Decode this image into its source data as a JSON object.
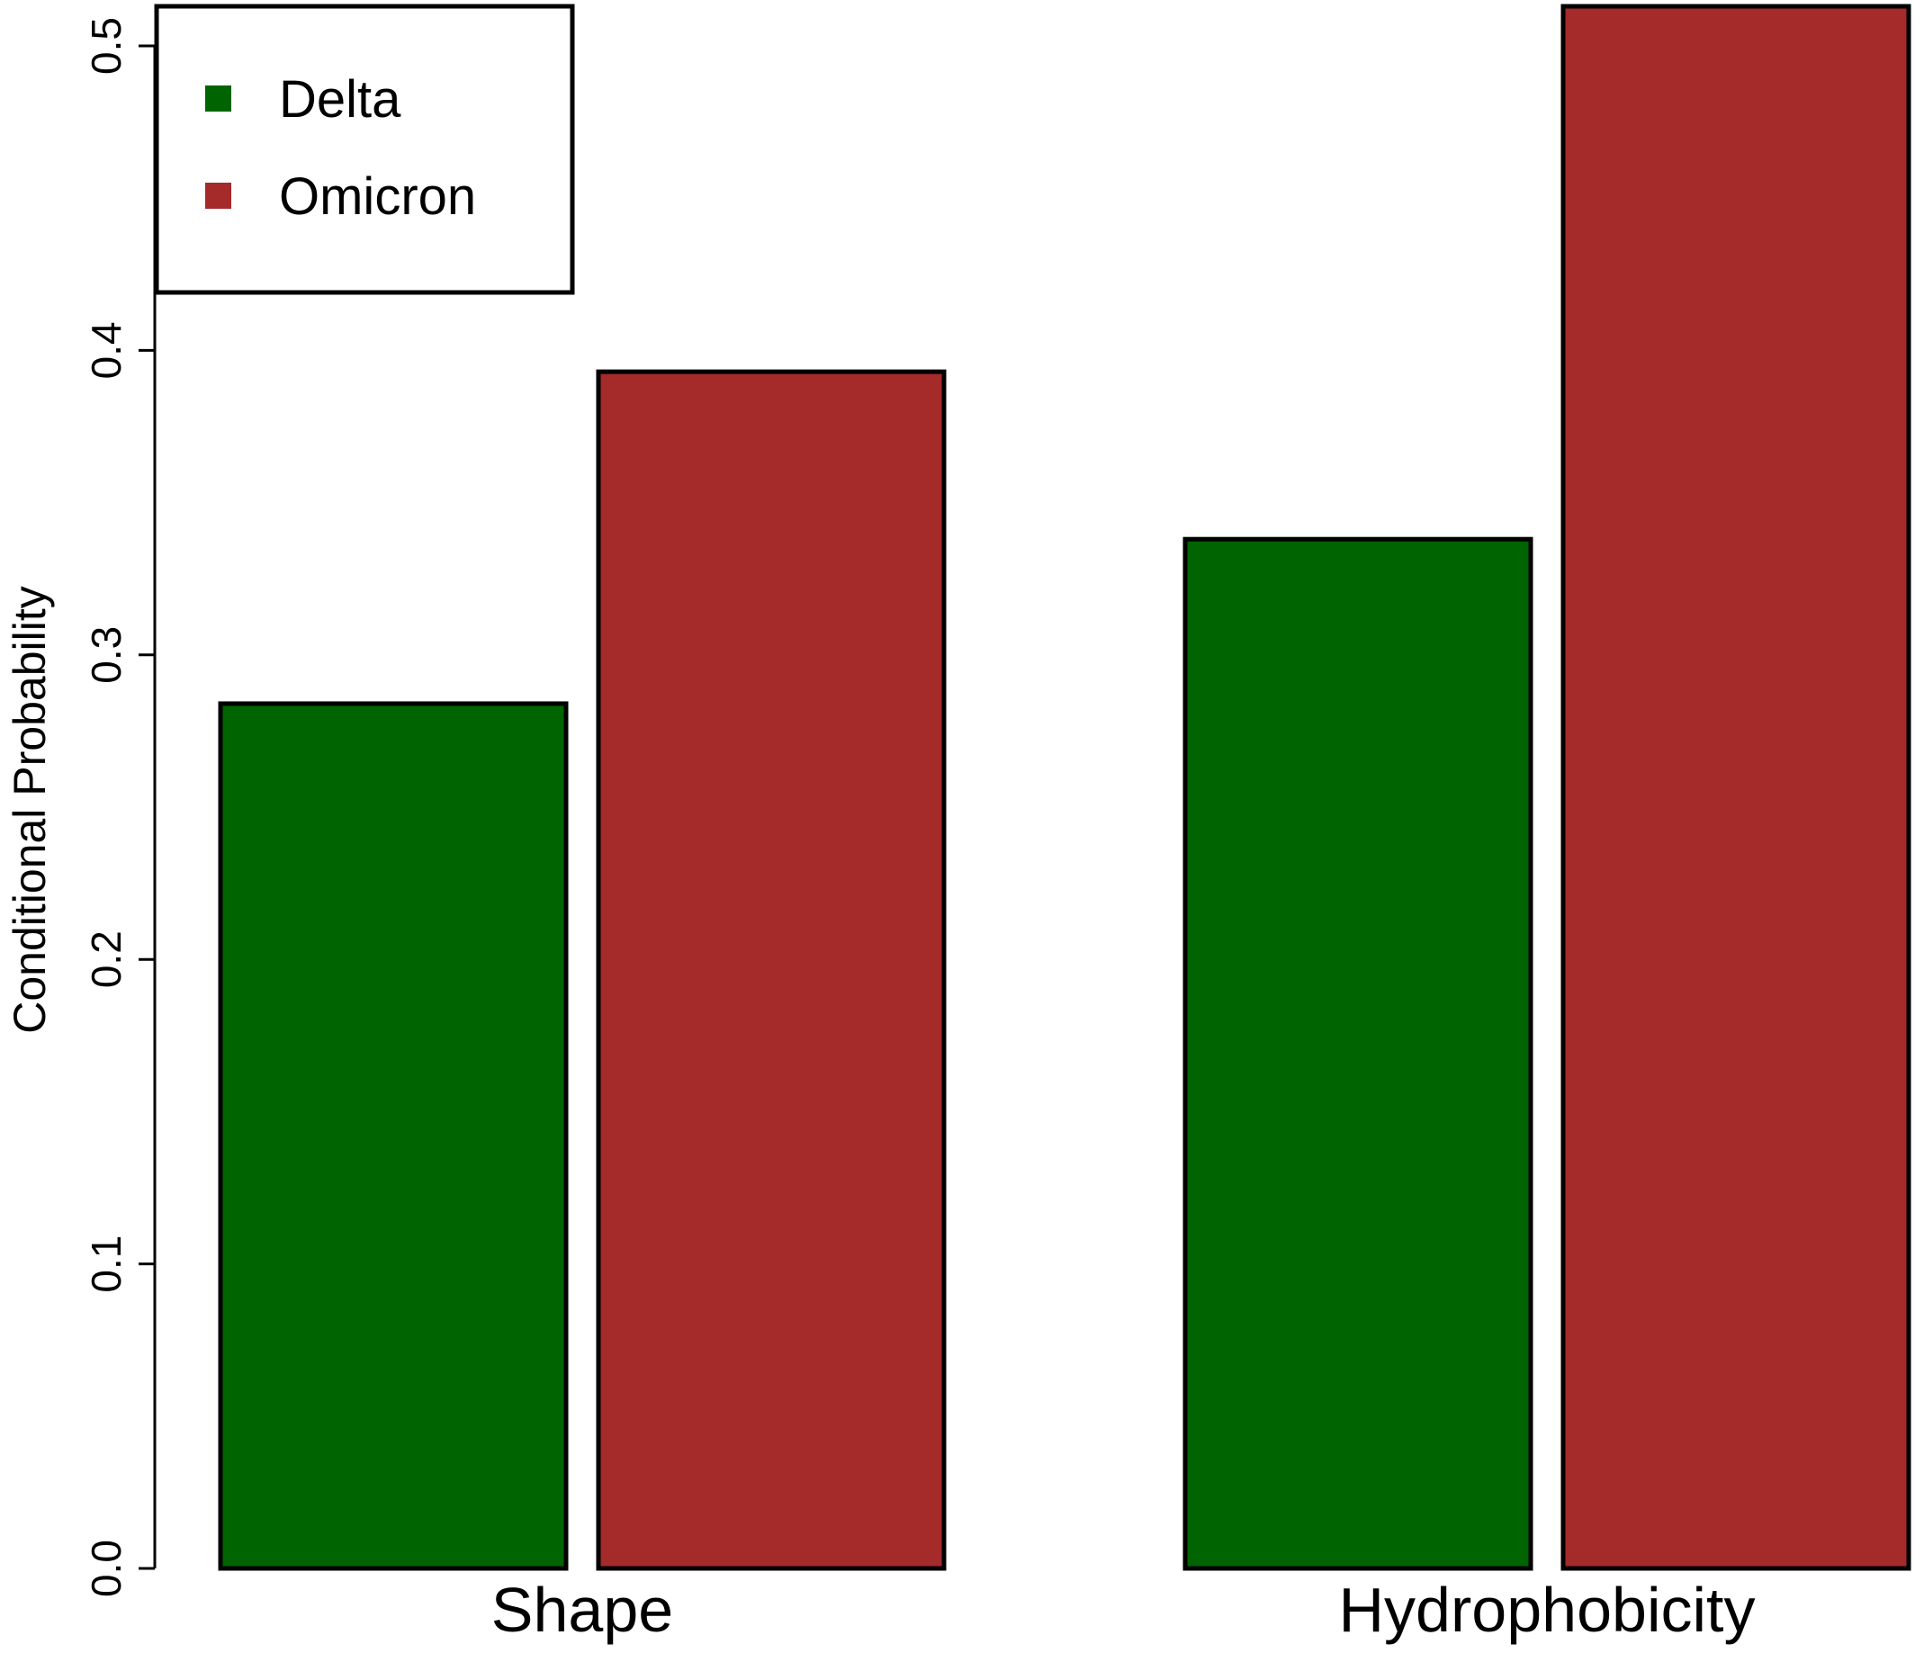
{
  "chart_data": {
    "type": "bar",
    "title": "",
    "xlabel": "",
    "ylabel": "Conditional Probability",
    "categories": [
      "Shape",
      "Hydrophobicity"
    ],
    "series": [
      {
        "name": "Delta",
        "values": [
          0.284,
          0.338
        ],
        "color": "#006400"
      },
      {
        "name": "Omicron",
        "values": [
          0.393,
          0.513
        ],
        "color": "#A52A2A"
      }
    ],
    "ylim": [
      0.0,
      0.5
    ],
    "yticks": [
      "0.0",
      "0.1",
      "0.2",
      "0.3",
      "0.4",
      "0.5"
    ],
    "grid": false,
    "legend_position": "top-left"
  }
}
